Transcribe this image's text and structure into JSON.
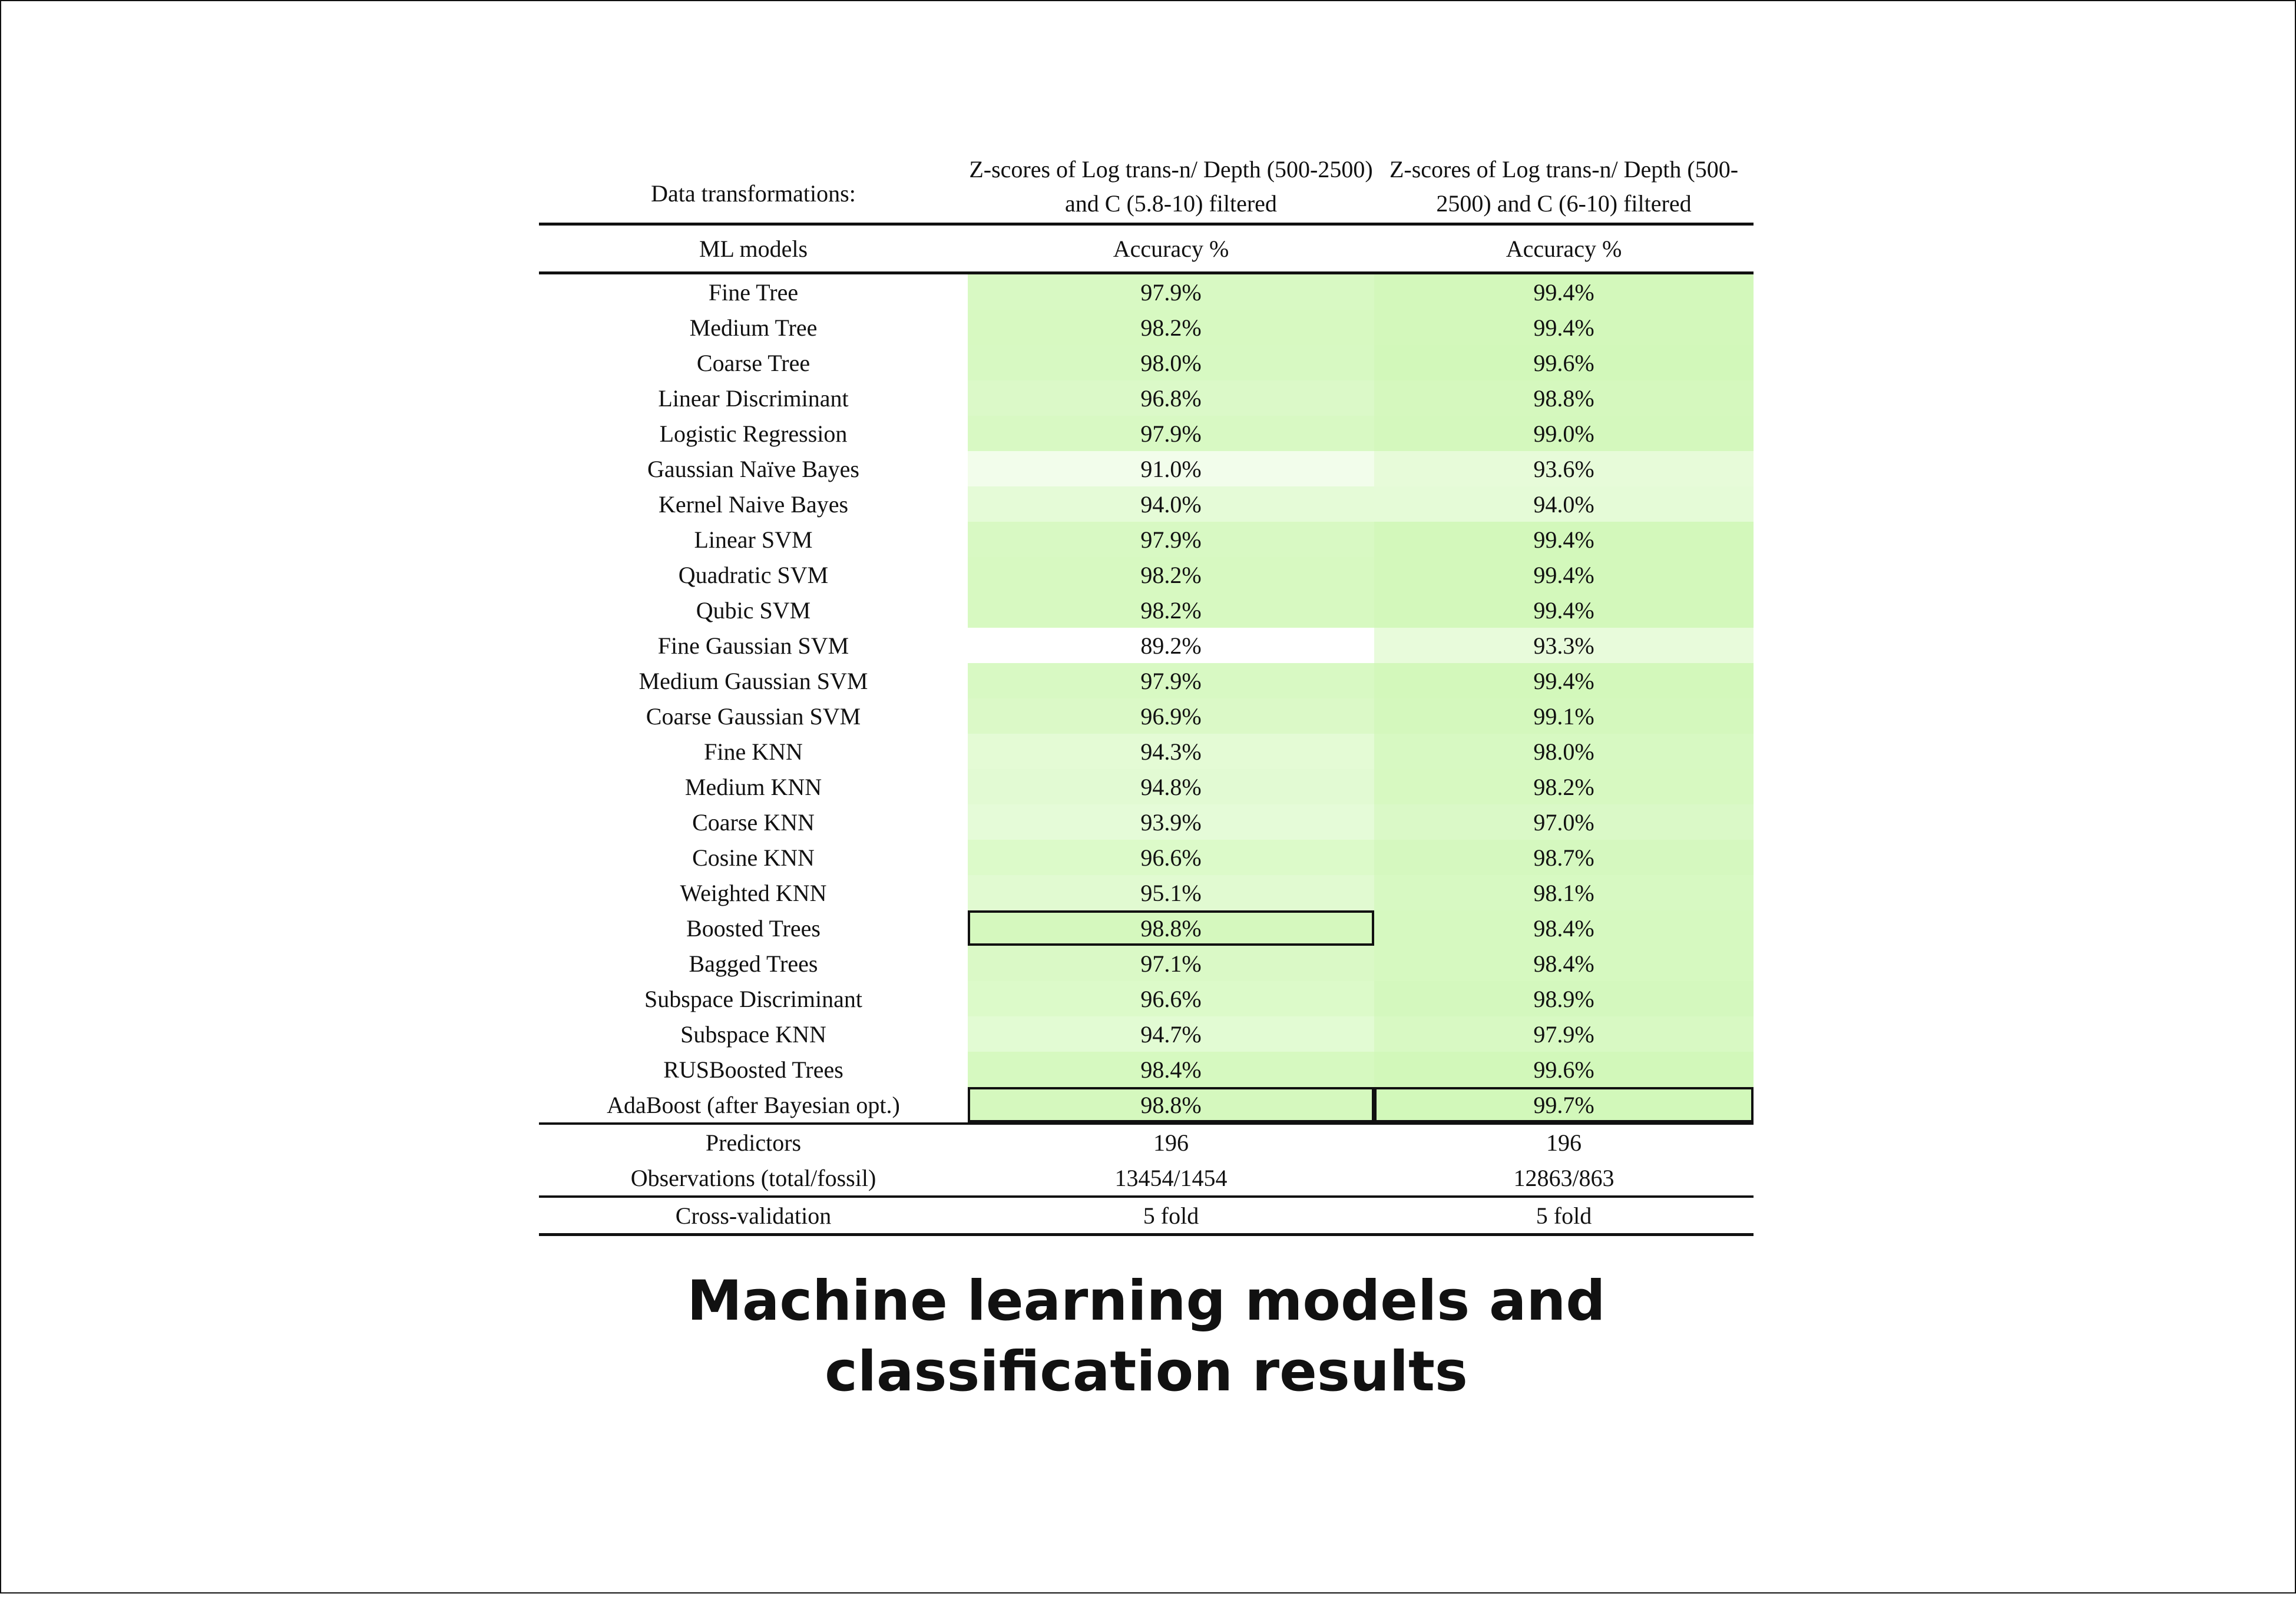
{
  "header": {
    "col1": "Data transformations:",
    "col2": "Z-scores of Log trans-n/ Depth (500-2500) and C (5.8-10) filtered",
    "col3": "Z-scores of Log trans-n/ Depth (500-2500) and C (6-10) filtered"
  },
  "subheader": {
    "col1": "ML models",
    "col2": "Accuracy %",
    "col3": "Accuracy %"
  },
  "rows": [
    {
      "model": "Fine Tree",
      "a": "97.9%",
      "b": "99.4%"
    },
    {
      "model": "Medium Tree",
      "a": "98.2%",
      "b": "99.4%"
    },
    {
      "model": "Coarse Tree",
      "a": "98.0%",
      "b": "99.6%"
    },
    {
      "model": "Linear Discriminant",
      "a": "96.8%",
      "b": "98.8%"
    },
    {
      "model": "Logistic Regression",
      "a": "97.9%",
      "b": "99.0%"
    },
    {
      "model": "Gaussian Naïve Bayes",
      "a": "91.0%",
      "b": "93.6%"
    },
    {
      "model": "Kernel Naive Bayes",
      "a": "94.0%",
      "b": "94.0%"
    },
    {
      "model": "Linear SVM",
      "a": "97.9%",
      "b": "99.4%"
    },
    {
      "model": "Quadratic SVM",
      "a": "98.2%",
      "b": "99.4%"
    },
    {
      "model": "Qubic SVM",
      "a": "98.2%",
      "b": "99.4%"
    },
    {
      "model": "Fine Gaussian SVM",
      "a": "89.2%",
      "b": "93.3%"
    },
    {
      "model": "Medium Gaussian SVM",
      "a": "97.9%",
      "b": "99.4%"
    },
    {
      "model": "Coarse Gaussian SVM",
      "a": "96.9%",
      "b": "99.1%"
    },
    {
      "model": "Fine KNN",
      "a": "94.3%",
      "b": "98.0%"
    },
    {
      "model": "Medium KNN",
      "a": "94.8%",
      "b": "98.2%"
    },
    {
      "model": "Coarse KNN",
      "a": "93.9%",
      "b": "97.0%"
    },
    {
      "model": "Cosine KNN",
      "a": "96.6%",
      "b": "98.7%"
    },
    {
      "model": "Weighted KNN",
      "a": "95.1%",
      "b": "98.1%"
    },
    {
      "model": "Boosted Trees",
      "a": "98.8%",
      "b": "98.4%"
    },
    {
      "model": "Bagged Trees",
      "a": "97.1%",
      "b": "98.4%"
    },
    {
      "model": "Subspace Discriminant",
      "a": "96.6%",
      "b": "98.9%"
    },
    {
      "model": "Subspace KNN",
      "a": "94.7%",
      "b": "97.9%"
    },
    {
      "model": "RUSBoosted Trees",
      "a": "98.4%",
      "b": "99.6%"
    },
    {
      "model": "AdaBoost (after Bayesian opt.)",
      "a": "98.8%",
      "b": "99.7%"
    }
  ],
  "footer": [
    {
      "label": "Predictors",
      "a": "196",
      "b": "196"
    },
    {
      "label": "Observations (total/fossil)",
      "a": "13454/1454",
      "b": "12863/863"
    },
    {
      "label": "Cross-validation",
      "a": "5 fold",
      "b": "5 fold"
    }
  ],
  "caption": "Machine learning models and classification results",
  "colors": {
    "heat_low": "#ffffff",
    "heat_high": "#d2f8ba",
    "border": "#111111"
  }
}
